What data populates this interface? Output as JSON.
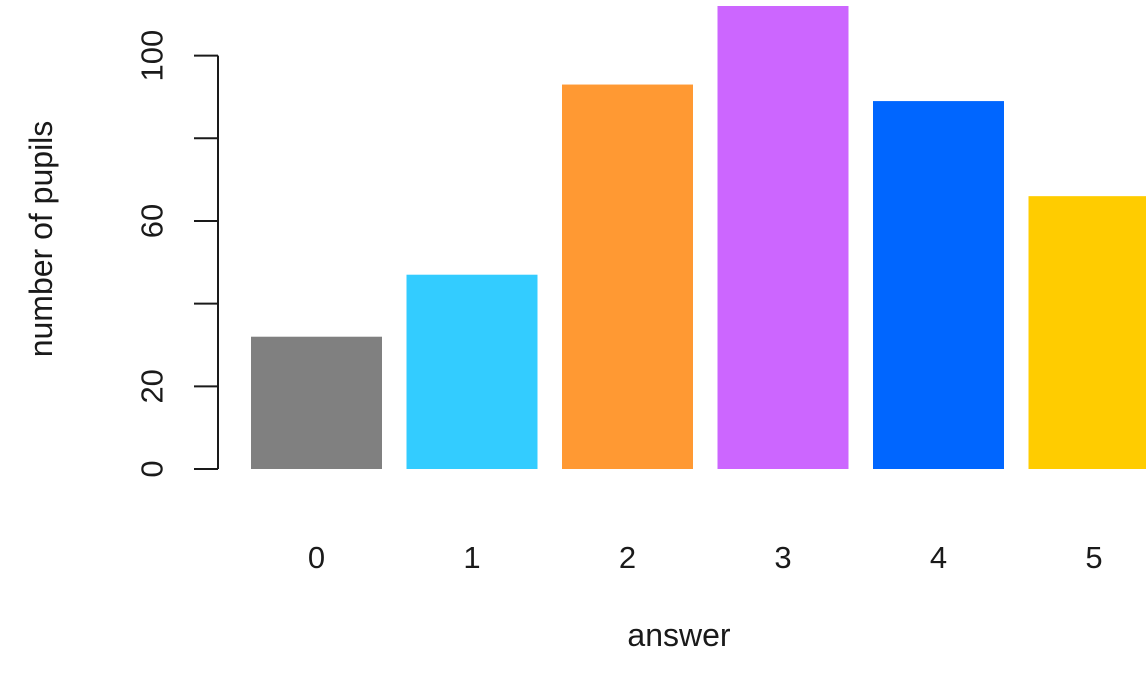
{
  "chart_data": {
    "type": "bar",
    "title": "",
    "xlabel": "answer",
    "ylabel": "number of pupils",
    "categories": [
      "0",
      "1",
      "2",
      "3",
      "4",
      "5"
    ],
    "values": [
      32,
      47,
      93,
      112,
      89,
      66
    ],
    "colors": [
      "#808080",
      "#33ccff",
      "#ff9933",
      "#cc66ff",
      "#0066ff",
      "#ffcc00"
    ],
    "ylim": [
      0,
      112
    ],
    "yticks": [
      0,
      20,
      60,
      100
    ],
    "y_minor_ticks": [
      40,
      80
    ],
    "grid": false,
    "legend": "none"
  }
}
